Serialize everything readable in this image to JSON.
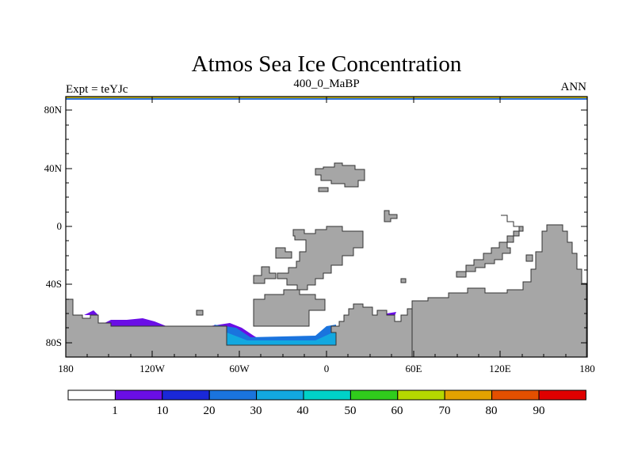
{
  "title": "Atmos Sea Ice Concentration",
  "header": {
    "left": "Expt = teYJc",
    "center": "400_0_MaBP",
    "right": "ANN"
  },
  "axes": {
    "y_ticks": [
      "80N",
      "40N",
      "0",
      "40S",
      "80S"
    ],
    "x_ticks": [
      "180",
      "120W",
      "60W",
      "0",
      "60E",
      "120E",
      "180"
    ]
  },
  "legend": {
    "labels": [
      "1",
      "10",
      "20",
      "30",
      "40",
      "50",
      "60",
      "70",
      "80",
      "90"
    ],
    "colors": [
      "#ffffff",
      "#6a0ee6",
      "#1a28d8",
      "#1a74de",
      "#12a8e0",
      "#00d2c8",
      "#30cc1c",
      "#b4d800",
      "#e2a200",
      "#e45000",
      "#e00000"
    ]
  },
  "colors": {
    "land": "#a6a6a6",
    "outline": "#333333"
  }
}
